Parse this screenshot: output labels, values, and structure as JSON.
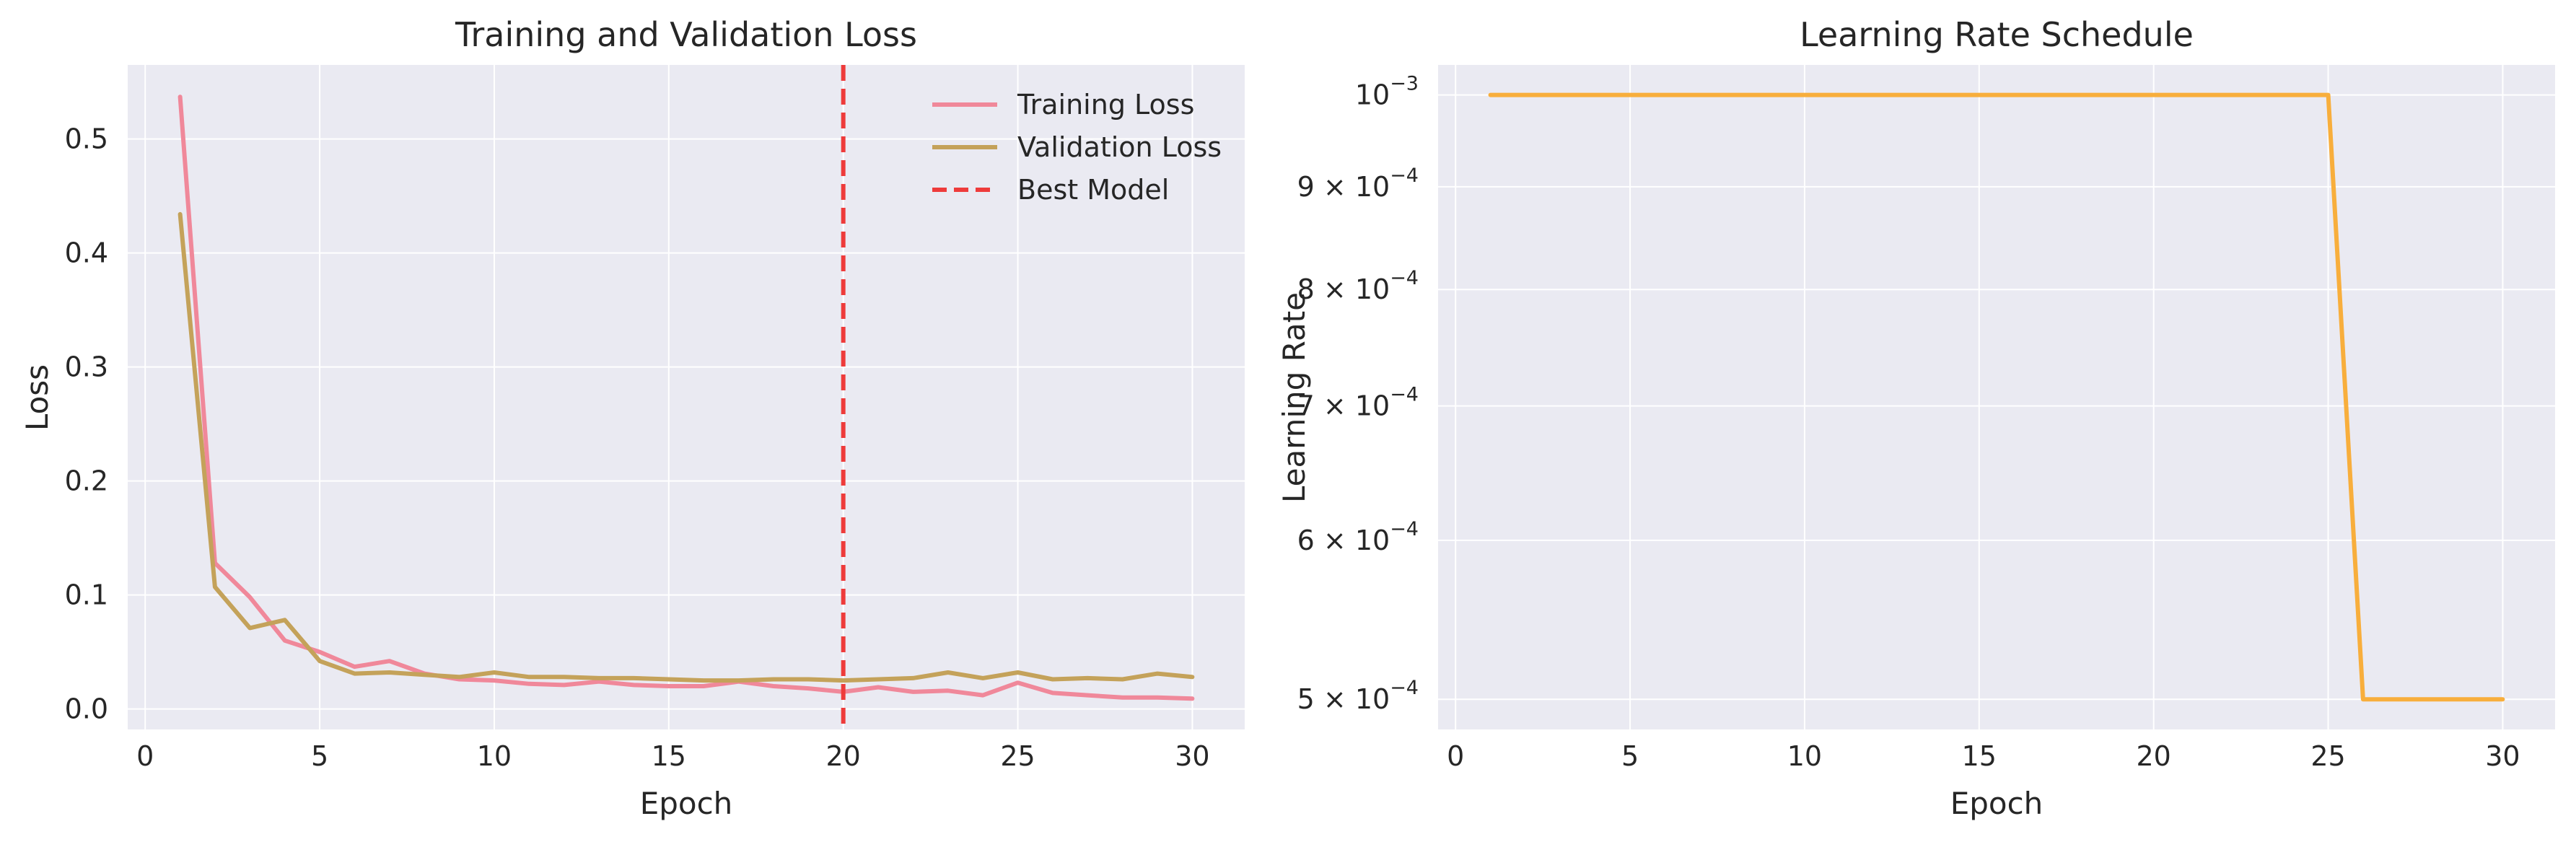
{
  "chart_data": [
    {
      "type": "line",
      "title": "Training and Validation Loss",
      "xlabel": "Epoch",
      "ylabel": "Loss",
      "xlim": [
        -0.5,
        31.5
      ],
      "ylim": [
        -0.018,
        0.565
      ],
      "xticks": [
        0,
        5,
        10,
        15,
        20,
        25,
        30
      ],
      "xtick_labels": [
        "0",
        "5",
        "10",
        "15",
        "20",
        "25",
        "30"
      ],
      "yticks": [
        0.0,
        0.1,
        0.2,
        0.3,
        0.4,
        0.5
      ],
      "ytick_labels": [
        "0.0",
        "0.1",
        "0.2",
        "0.3",
        "0.4",
        "0.5"
      ],
      "grid": true,
      "legend": "top-right",
      "x": [
        1,
        2,
        3,
        4,
        5,
        6,
        7,
        8,
        9,
        10,
        11,
        12,
        13,
        14,
        15,
        16,
        17,
        18,
        19,
        20,
        21,
        22,
        23,
        24,
        25,
        26,
        27,
        28,
        29,
        30
      ],
      "series": [
        {
          "name": "Training Loss",
          "color": "#f0889a",
          "values": [
            0.537,
            0.128,
            0.098,
            0.06,
            0.05,
            0.037,
            0.042,
            0.031,
            0.026,
            0.025,
            0.022,
            0.021,
            0.024,
            0.021,
            0.02,
            0.02,
            0.024,
            0.02,
            0.018,
            0.015,
            0.019,
            0.015,
            0.016,
            0.012,
            0.023,
            0.014,
            0.012,
            0.01,
            0.01,
            0.009
          ]
        },
        {
          "name": "Validation Loss",
          "color": "#c4a25a",
          "values": [
            0.434,
            0.107,
            0.071,
            0.078,
            0.042,
            0.031,
            0.032,
            0.03,
            0.028,
            0.032,
            0.028,
            0.028,
            0.027,
            0.027,
            0.026,
            0.025,
            0.025,
            0.026,
            0.026,
            0.025,
            0.026,
            0.027,
            0.032,
            0.027,
            0.032,
            0.026,
            0.027,
            0.026,
            0.031,
            0.028
          ]
        }
      ],
      "vlines": [
        {
          "name": "Best Model",
          "x": 20,
          "color": "#ee3b3b",
          "style": "dashed"
        }
      ]
    },
    {
      "type": "line",
      "title": "Learning Rate Schedule",
      "xlabel": "Epoch",
      "ylabel": "Learning Rate",
      "yscale": "log",
      "xlim": [
        -0.5,
        31.5
      ],
      "ylim": [
        0.000483,
        0.001035
      ],
      "xticks": [
        0,
        5,
        10,
        15,
        20,
        25,
        30
      ],
      "xtick_labels": [
        "0",
        "5",
        "10",
        "15",
        "20",
        "25",
        "30"
      ],
      "yticks": [
        0.001,
        0.0009,
        0.0008,
        0.0007,
        0.0006,
        0.0005
      ],
      "ytick_labels": [
        {
          "base": "10",
          "exp": "−3"
        },
        {
          "base": "9 × 10",
          "exp": "−4"
        },
        {
          "base": "8 × 10",
          "exp": "−4"
        },
        {
          "base": "7 × 10",
          "exp": "−4"
        },
        {
          "base": "6 × 10",
          "exp": "−4"
        },
        {
          "base": "5 × 10",
          "exp": "−4"
        }
      ],
      "grid": true,
      "x": [
        1,
        2,
        3,
        4,
        5,
        6,
        7,
        8,
        9,
        10,
        11,
        12,
        13,
        14,
        15,
        16,
        17,
        18,
        19,
        20,
        21,
        22,
        23,
        24,
        25,
        26,
        27,
        28,
        29,
        30
      ],
      "series": [
        {
          "color": "#f8ae3c",
          "values": [
            0.001,
            0.001,
            0.001,
            0.001,
            0.001,
            0.001,
            0.001,
            0.001,
            0.001,
            0.001,
            0.001,
            0.001,
            0.001,
            0.001,
            0.001,
            0.001,
            0.001,
            0.001,
            0.001,
            0.001,
            0.001,
            0.001,
            0.001,
            0.001,
            0.001,
            0.0005,
            0.0005,
            0.0005,
            0.0005,
            0.0005
          ]
        }
      ]
    }
  ]
}
